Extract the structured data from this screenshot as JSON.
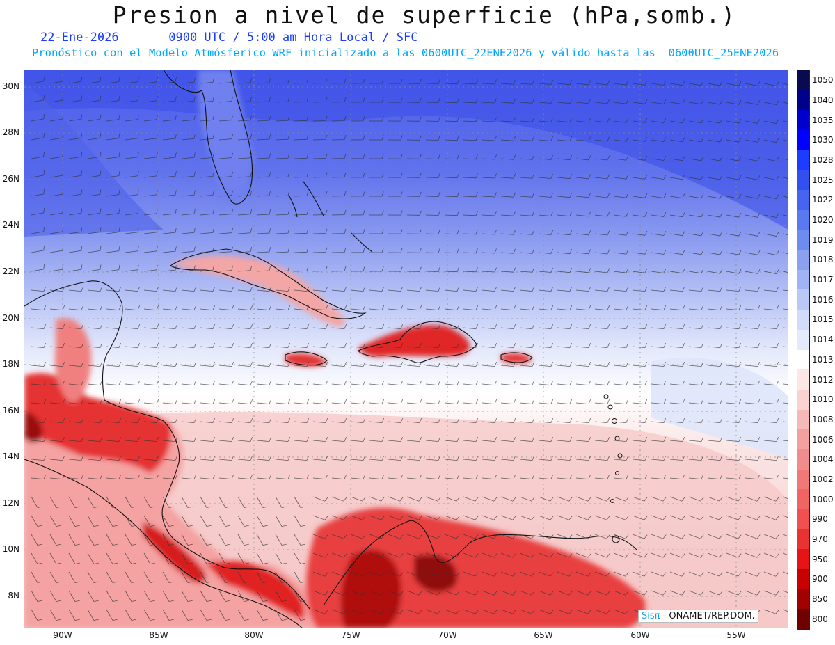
{
  "title": "Presion a nivel de superficie (hPa,somb.)",
  "subtitle": {
    "date": "22-Ene-2026",
    "time": "0900 UTC / 5:00 am Hora Local / SFC"
  },
  "forecast_note": "Pronóstico con el Modelo Atmósferico WRF inicializado a las 0600UTC_22ENE2026 y válido hasta las  0600UTC_25ENE2026",
  "credit": {
    "brand": "Sisπ",
    "text": " - ONAMET/REP.DOM."
  },
  "lat_labels": [
    "30N",
    "28N",
    "26N",
    "24N",
    "22N",
    "20N",
    "18N",
    "16N",
    "14N",
    "12N",
    "10N",
    "8N"
  ],
  "lon_labels": [
    "90W",
    "85W",
    "80W",
    "75W",
    "70W",
    "65W",
    "60W",
    "55W"
  ],
  "colorbar": {
    "levels": [
      "1050",
      "1040",
      "1035",
      "1030",
      "1028",
      "1025",
      "1022",
      "1020",
      "1019",
      "1018",
      "1017",
      "1016",
      "1015",
      "1014",
      "1013",
      "1012",
      "1010",
      "1008",
      "1006",
      "1004",
      "1002",
      "1000",
      "990",
      "970",
      "950",
      "900",
      "850",
      "800"
    ],
    "colors": [
      "#0a0a50",
      "#00008b",
      "#0000cd",
      "#0000ff",
      "#1e3cff",
      "#3250f0",
      "#4664f0",
      "#5a78f0",
      "#6e8cf0",
      "#8ca0f0",
      "#a0b4f5",
      "#b9c8f5",
      "#d2dcfa",
      "#e6ebfc",
      "#ffffff",
      "#fce6e6",
      "#fad2d2",
      "#f5b9b9",
      "#f5a0a0",
      "#f08c8c",
      "#f07878",
      "#f06464",
      "#f05050",
      "#eb3232",
      "#e61414",
      "#c80000",
      "#a00000",
      "#6e0000"
    ]
  }
}
